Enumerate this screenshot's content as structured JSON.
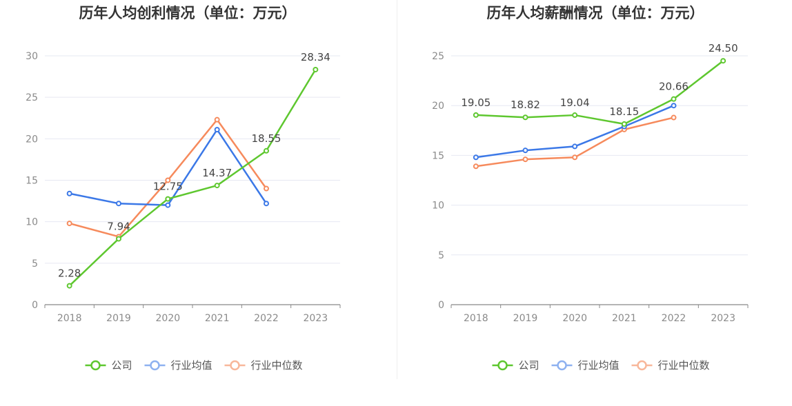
{
  "colors": {
    "company": "#5ec72f",
    "industry_avg": "#3b78e7",
    "industry_median": "#f68a5c",
    "grid": "#e6e8f2",
    "axis": "#888888"
  },
  "legend": {
    "company": "公司",
    "industry_avg": "行业均值",
    "industry_median": "行业中位数"
  },
  "chart_data": [
    {
      "type": "line",
      "title": "历年人均创利情况（单位：万元）",
      "categories": [
        "2018",
        "2019",
        "2020",
        "2021",
        "2022",
        "2023"
      ],
      "ylim": [
        0,
        30
      ],
      "yticks": [
        "0",
        "5",
        "10",
        "15",
        "20",
        "25",
        "30"
      ],
      "grid": true,
      "legend_position": "bottom",
      "series": [
        {
          "name": "公司",
          "key": "company",
          "values": [
            2.28,
            7.94,
            12.75,
            14.37,
            18.55,
            28.34
          ],
          "labels": [
            "2.28",
            "7.94",
            "12.75",
            "14.37",
            "18.55",
            "28.34"
          ]
        },
        {
          "name": "行业均值",
          "key": "industry_avg",
          "values": [
            13.4,
            12.2,
            12.0,
            21.1,
            12.2,
            null
          ]
        },
        {
          "name": "行业中位数",
          "key": "industry_median",
          "values": [
            9.8,
            8.2,
            15.0,
            22.3,
            14.0,
            null
          ]
        }
      ]
    },
    {
      "type": "line",
      "title": "历年人均薪酬情况（单位：万元）",
      "categories": [
        "2018",
        "2019",
        "2020",
        "2021",
        "2022",
        "2023"
      ],
      "ylim": [
        0,
        25
      ],
      "yticks": [
        "0",
        "5",
        "10",
        "15",
        "20",
        "25"
      ],
      "grid": true,
      "legend_position": "bottom",
      "series": [
        {
          "name": "公司",
          "key": "company",
          "values": [
            19.05,
            18.82,
            19.04,
            18.15,
            20.66,
            24.5
          ],
          "labels": [
            "19.05",
            "18.82",
            "19.04",
            "18.15",
            "20.66",
            "24.50"
          ]
        },
        {
          "name": "行业均值",
          "key": "industry_avg",
          "values": [
            14.8,
            15.5,
            15.9,
            17.9,
            20.0,
            null
          ]
        },
        {
          "name": "行业中位数",
          "key": "industry_median",
          "values": [
            13.9,
            14.6,
            14.8,
            17.6,
            18.8,
            null
          ]
        }
      ]
    }
  ]
}
